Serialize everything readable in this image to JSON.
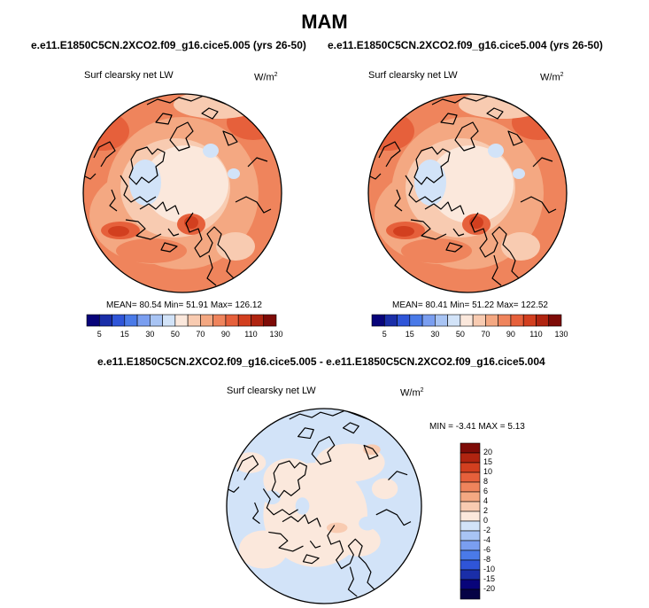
{
  "title": "MAM",
  "panels": {
    "left": {
      "case": "e.e11.E1850C5CN.2XCO2.f09_g16.cice5.005 (yrs 26-50)",
      "variable": "Surf clearsky net LW",
      "units_base": "W/m",
      "units_exp": "2",
      "mean_label": "MEAN=",
      "mean": "80.54",
      "min_label": "Min=",
      "min": "51.91",
      "max_label": "Max=",
      "max": "126.12"
    },
    "right": {
      "case": "e.e11.E1850C5CN.2XCO2.f09_g16.cice5.004 (yrs 26-50)",
      "variable": "Surf clearsky net LW",
      "units_base": "W/m",
      "units_exp": "2",
      "mean_label": "MEAN=",
      "mean": "80.41",
      "min_label": "Min=",
      "min": "51.22",
      "max_label": "Max=",
      "max": "122.52"
    },
    "diff": {
      "case": "e.e11.E1850C5CN.2XCO2.f09_g16.cice5.005 - e.e11.E1850C5CN.2XCO2.f09_g16.cice5.004",
      "variable": "Surf clearsky net LW",
      "units_base": "W/m",
      "units_exp": "2",
      "min_label": "MIN =",
      "min": "-3.41",
      "max_label": "MAX =",
      "max": "5.13"
    }
  },
  "colorbar_abs": {
    "tick_labels": [
      "5",
      "15",
      "30",
      "50",
      "70",
      "90",
      "110",
      "130"
    ],
    "colors": [
      "#08047a",
      "#1a2ea8",
      "#2f55d8",
      "#4a7ae8",
      "#7a9ef0",
      "#a8c4f4",
      "#d2e3f8",
      "#fbe8dc",
      "#f8cbb1",
      "#f4a882",
      "#ef845c",
      "#e6603b",
      "#d23f1f",
      "#b02410",
      "#7e0b07"
    ]
  },
  "colorbar_diff": {
    "tick_labels": [
      "20",
      "15",
      "10",
      "8",
      "6",
      "4",
      "2",
      "0",
      "-2",
      "-4",
      "-6",
      "-8",
      "-10",
      "-15",
      "-20"
    ],
    "colors": [
      "#7e0b07",
      "#b02410",
      "#d23f1f",
      "#e6603b",
      "#ef845c",
      "#f4a882",
      "#f8cbb1",
      "#fbe8dc",
      "#d2e3f8",
      "#a8c4f4",
      "#7a9ef0",
      "#4a7ae8",
      "#2f55d8",
      "#1a2ea8",
      "#08047a",
      "#050345"
    ]
  }
}
